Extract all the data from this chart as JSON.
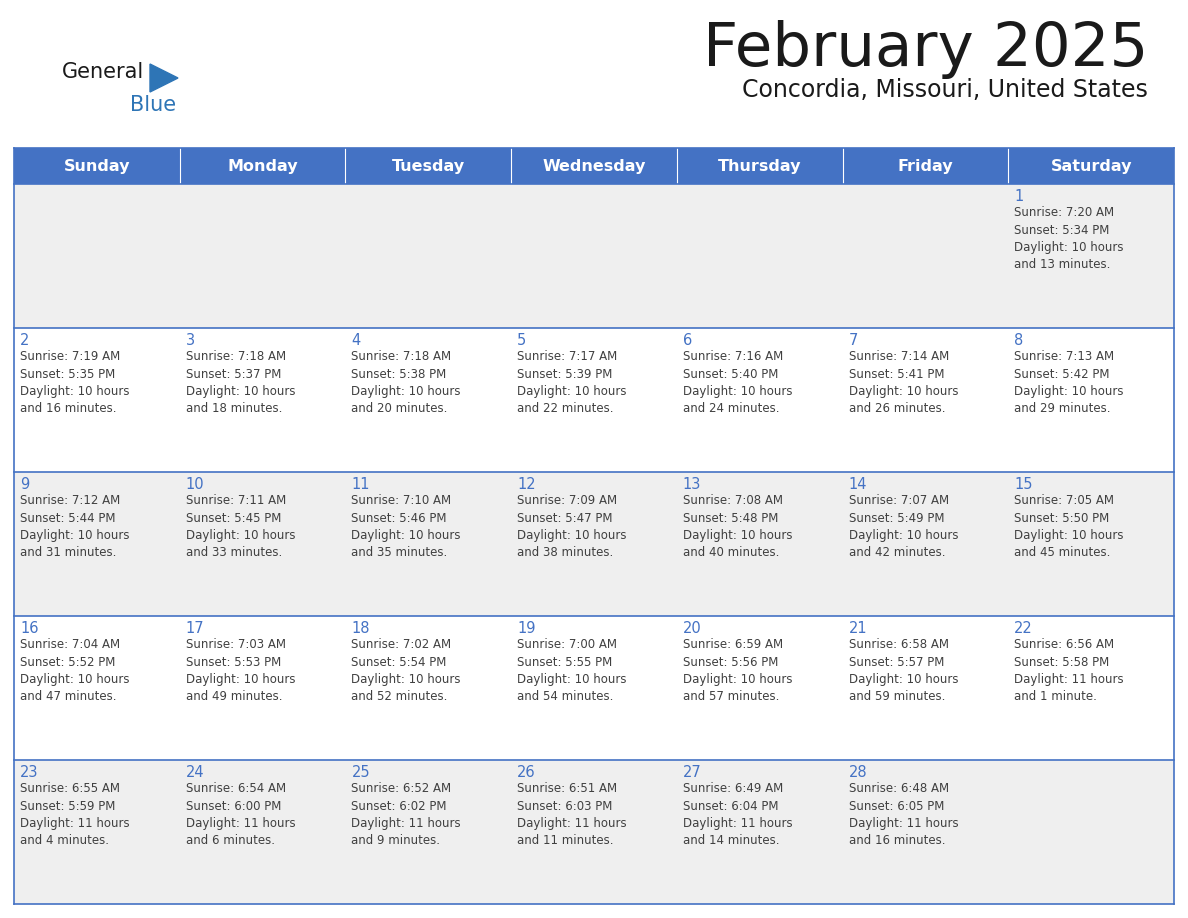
{
  "title": "February 2025",
  "subtitle": "Concordia, Missouri, United States",
  "header_color": "#4472C4",
  "header_text_color": "#FFFFFF",
  "days_of_week": [
    "Sunday",
    "Monday",
    "Tuesday",
    "Wednesday",
    "Thursday",
    "Friday",
    "Saturday"
  ],
  "background_color": "#FFFFFF",
  "cell_bg_even": "#EFEFEF",
  "cell_bg_odd": "#FFFFFF",
  "grid_line_color": "#4472C4",
  "day_number_color": "#4472C4",
  "text_color": "#404040",
  "weeks": [
    [
      {
        "day": null,
        "info": null
      },
      {
        "day": null,
        "info": null
      },
      {
        "day": null,
        "info": null
      },
      {
        "day": null,
        "info": null
      },
      {
        "day": null,
        "info": null
      },
      {
        "day": null,
        "info": null
      },
      {
        "day": 1,
        "info": "Sunrise: 7:20 AM\nSunset: 5:34 PM\nDaylight: 10 hours\nand 13 minutes."
      }
    ],
    [
      {
        "day": 2,
        "info": "Sunrise: 7:19 AM\nSunset: 5:35 PM\nDaylight: 10 hours\nand 16 minutes."
      },
      {
        "day": 3,
        "info": "Sunrise: 7:18 AM\nSunset: 5:37 PM\nDaylight: 10 hours\nand 18 minutes."
      },
      {
        "day": 4,
        "info": "Sunrise: 7:18 AM\nSunset: 5:38 PM\nDaylight: 10 hours\nand 20 minutes."
      },
      {
        "day": 5,
        "info": "Sunrise: 7:17 AM\nSunset: 5:39 PM\nDaylight: 10 hours\nand 22 minutes."
      },
      {
        "day": 6,
        "info": "Sunrise: 7:16 AM\nSunset: 5:40 PM\nDaylight: 10 hours\nand 24 minutes."
      },
      {
        "day": 7,
        "info": "Sunrise: 7:14 AM\nSunset: 5:41 PM\nDaylight: 10 hours\nand 26 minutes."
      },
      {
        "day": 8,
        "info": "Sunrise: 7:13 AM\nSunset: 5:42 PM\nDaylight: 10 hours\nand 29 minutes."
      }
    ],
    [
      {
        "day": 9,
        "info": "Sunrise: 7:12 AM\nSunset: 5:44 PM\nDaylight: 10 hours\nand 31 minutes."
      },
      {
        "day": 10,
        "info": "Sunrise: 7:11 AM\nSunset: 5:45 PM\nDaylight: 10 hours\nand 33 minutes."
      },
      {
        "day": 11,
        "info": "Sunrise: 7:10 AM\nSunset: 5:46 PM\nDaylight: 10 hours\nand 35 minutes."
      },
      {
        "day": 12,
        "info": "Sunrise: 7:09 AM\nSunset: 5:47 PM\nDaylight: 10 hours\nand 38 minutes."
      },
      {
        "day": 13,
        "info": "Sunrise: 7:08 AM\nSunset: 5:48 PM\nDaylight: 10 hours\nand 40 minutes."
      },
      {
        "day": 14,
        "info": "Sunrise: 7:07 AM\nSunset: 5:49 PM\nDaylight: 10 hours\nand 42 minutes."
      },
      {
        "day": 15,
        "info": "Sunrise: 7:05 AM\nSunset: 5:50 PM\nDaylight: 10 hours\nand 45 minutes."
      }
    ],
    [
      {
        "day": 16,
        "info": "Sunrise: 7:04 AM\nSunset: 5:52 PM\nDaylight: 10 hours\nand 47 minutes."
      },
      {
        "day": 17,
        "info": "Sunrise: 7:03 AM\nSunset: 5:53 PM\nDaylight: 10 hours\nand 49 minutes."
      },
      {
        "day": 18,
        "info": "Sunrise: 7:02 AM\nSunset: 5:54 PM\nDaylight: 10 hours\nand 52 minutes."
      },
      {
        "day": 19,
        "info": "Sunrise: 7:00 AM\nSunset: 5:55 PM\nDaylight: 10 hours\nand 54 minutes."
      },
      {
        "day": 20,
        "info": "Sunrise: 6:59 AM\nSunset: 5:56 PM\nDaylight: 10 hours\nand 57 minutes."
      },
      {
        "day": 21,
        "info": "Sunrise: 6:58 AM\nSunset: 5:57 PM\nDaylight: 10 hours\nand 59 minutes."
      },
      {
        "day": 22,
        "info": "Sunrise: 6:56 AM\nSunset: 5:58 PM\nDaylight: 11 hours\nand 1 minute."
      }
    ],
    [
      {
        "day": 23,
        "info": "Sunrise: 6:55 AM\nSunset: 5:59 PM\nDaylight: 11 hours\nand 4 minutes."
      },
      {
        "day": 24,
        "info": "Sunrise: 6:54 AM\nSunset: 6:00 PM\nDaylight: 11 hours\nand 6 minutes."
      },
      {
        "day": 25,
        "info": "Sunrise: 6:52 AM\nSunset: 6:02 PM\nDaylight: 11 hours\nand 9 minutes."
      },
      {
        "day": 26,
        "info": "Sunrise: 6:51 AM\nSunset: 6:03 PM\nDaylight: 11 hours\nand 11 minutes."
      },
      {
        "day": 27,
        "info": "Sunrise: 6:49 AM\nSunset: 6:04 PM\nDaylight: 11 hours\nand 14 minutes."
      },
      {
        "day": 28,
        "info": "Sunrise: 6:48 AM\nSunset: 6:05 PM\nDaylight: 11 hours\nand 16 minutes."
      },
      {
        "day": null,
        "info": null
      }
    ]
  ]
}
